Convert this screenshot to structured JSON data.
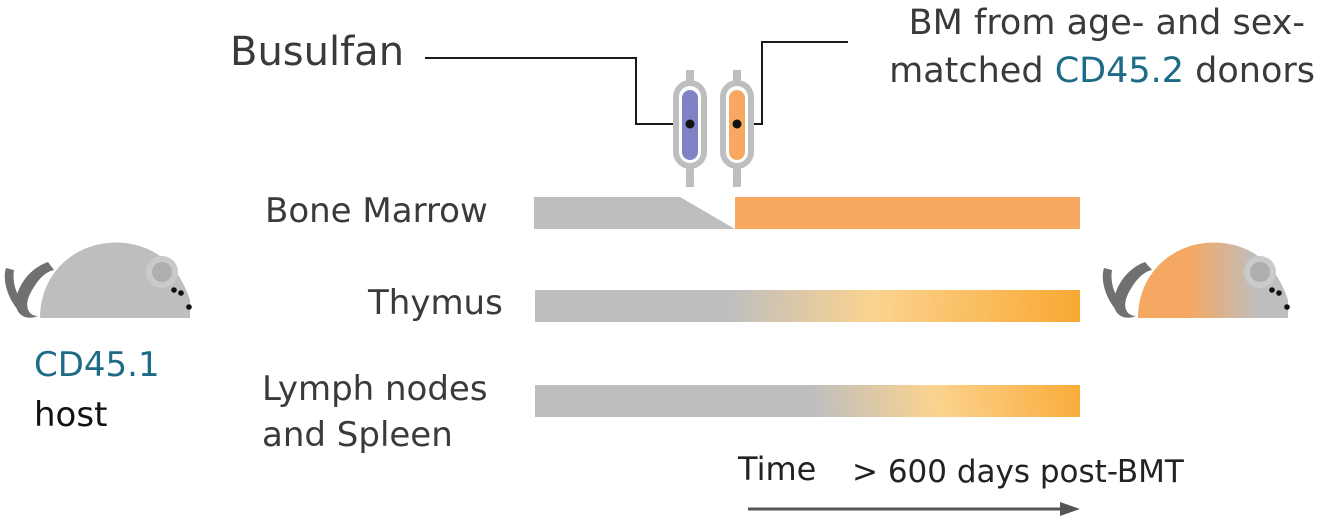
{
  "labels": {
    "busulfan": "Busulfan",
    "donor_line1": "BM from age- and sex-",
    "donor_line2_pre": "matched ",
    "donor_line2_cd": "CD45.2",
    "donor_line2_post": " donors",
    "bone_marrow": "Bone Marrow",
    "thymus": "Thymus",
    "lymph_line1": "Lymph nodes",
    "lymph_line2": "and Spleen",
    "host_cd": "CD45.1",
    "host_word": "host",
    "time": "Time",
    "duration": "> 600 days post-BMT"
  },
  "colors": {
    "host_grey": "#bdbec0",
    "donor_orange": "#f9a862",
    "gradient_orange": "#f9a832",
    "busulfan_purple": "#7f82c4",
    "teal_text": "#1d6b86",
    "dark_text": "#3a3a3a"
  },
  "icons": [
    "mouse-host-icon",
    "mouse-chimera-icon",
    "syringe-busulfan-icon",
    "syringe-donor-icon",
    "time-arrow-icon"
  ]
}
